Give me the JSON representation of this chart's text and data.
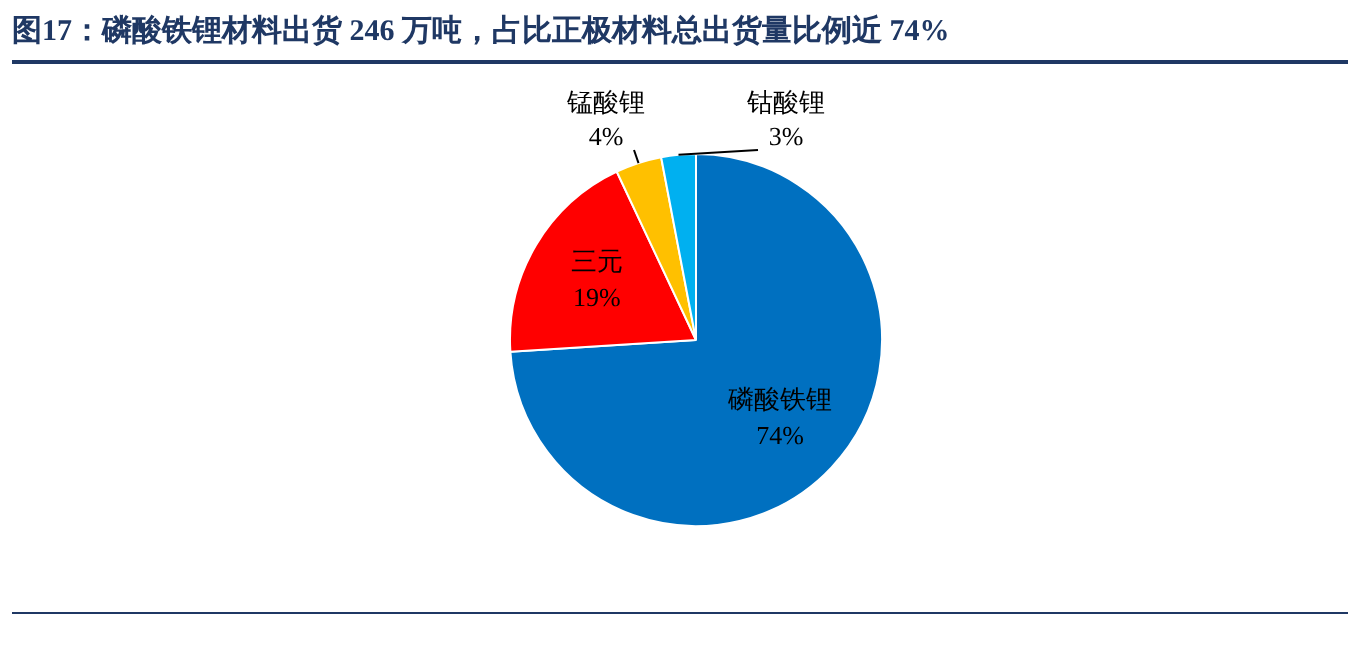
{
  "chart_data": {
    "type": "pie",
    "title": "图17：磷酸铁锂材料出货 246 万吨，占比正极材料总出货量比例近 74%",
    "categories": [
      "磷酸铁锂",
      "三元",
      "锰酸锂",
      "钴酸锂"
    ],
    "values": [
      74,
      19,
      4,
      3
    ],
    "value_labels": [
      "74%",
      "19%",
      "4%",
      "3%"
    ],
    "colors": [
      "#0070c0",
      "#ff0000",
      "#ffc000",
      "#00b0f0"
    ],
    "legend": false
  }
}
